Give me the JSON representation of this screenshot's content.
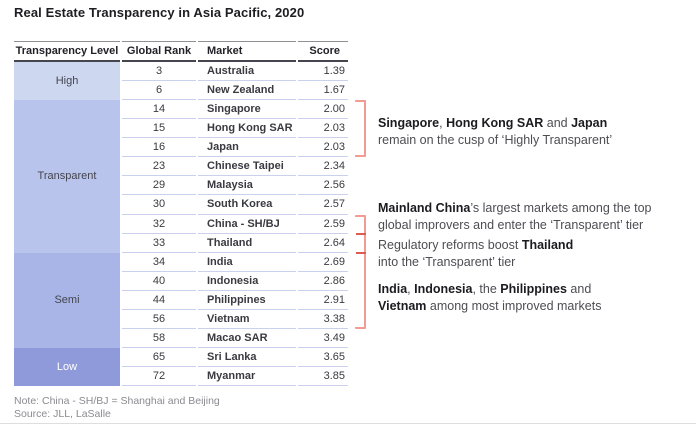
{
  "title": "Real Estate Transparency in Asia Pacific, 2020",
  "notes": {
    "note": "Note: China - SH/BJ = Shanghai and Beijing",
    "source": "Source: JLL, LaSalle"
  },
  "colors": {
    "band_high": "#cdd7f0",
    "band_transparent": "#b8c4eb",
    "band_semi": "#a9b5e6",
    "band_low": "#8e9ad9",
    "gridline": "#c9d1ed",
    "bracket": "#f29b95",
    "bracket_tick": "#df5a52"
  },
  "chart_data": {
    "type": "table",
    "title": "Real Estate Transparency in Asia Pacific, 2020",
    "columns": [
      "Transparency Level",
      "Global Rank",
      "Market",
      "Score"
    ],
    "levels": [
      {
        "label": "High",
        "rows": 2,
        "color": "#cdd7f0",
        "text_color": "#44454f"
      },
      {
        "label": "Transparent",
        "rows": 8,
        "color": "#b8c4eb",
        "text_color": "#44454f"
      },
      {
        "label": "Semi",
        "rows": 5,
        "color": "#a9b5e6",
        "text_color": "#44454f"
      },
      {
        "label": "Low",
        "rows": 2,
        "color": "#8e9ad9",
        "text_color": "#ffffff"
      }
    ],
    "rows": [
      {
        "level": "High",
        "rank": "3",
        "market": "Australia",
        "score": "1.39"
      },
      {
        "level": "High",
        "rank": "6",
        "market": "New Zealand",
        "score": "1.67"
      },
      {
        "level": "Transparent",
        "rank": "14",
        "market": "Singapore",
        "score": "2.00"
      },
      {
        "level": "Transparent",
        "rank": "15",
        "market": "Hong Kong SAR",
        "score": "2.03"
      },
      {
        "level": "Transparent",
        "rank": "16",
        "market": "Japan",
        "score": "2.03"
      },
      {
        "level": "Transparent",
        "rank": "23",
        "market": "Chinese Taipei",
        "score": "2.34"
      },
      {
        "level": "Transparent",
        "rank": "29",
        "market": "Malaysia",
        "score": "2.56"
      },
      {
        "level": "Transparent",
        "rank": "30",
        "market": "South Korea",
        "score": "2.57"
      },
      {
        "level": "Transparent",
        "rank": "32",
        "market": "China - SH/BJ",
        "score": "2.59"
      },
      {
        "level": "Transparent",
        "rank": "33",
        "market": "Thailand",
        "score": "2.64"
      },
      {
        "level": "Semi",
        "rank": "34",
        "market": "India",
        "score": "2.69"
      },
      {
        "level": "Semi",
        "rank": "40",
        "market": "Indonesia",
        "score": "2.86"
      },
      {
        "level": "Semi",
        "rank": "44",
        "market": "Philippines",
        "score": "2.91"
      },
      {
        "level": "Semi",
        "rank": "56",
        "market": "Vietnam",
        "score": "3.38"
      },
      {
        "level": "Semi",
        "rank": "58",
        "market": "Macao SAR",
        "score": "3.49"
      },
      {
        "level": "Low",
        "rank": "65",
        "market": "Sri Lanka",
        "score": "3.65"
      },
      {
        "level": "Low",
        "rank": "72",
        "market": "Myanmar",
        "score": "3.85"
      }
    ]
  },
  "annotations": [
    {
      "lines": [
        [
          {
            "t": "Singapore",
            "b": 1
          },
          {
            "t": ", ",
            "b": 0
          },
          {
            "t": "Hong Kong SAR",
            "b": 1
          },
          {
            "t": " and ",
            "b": 0
          },
          {
            "t": "Japan",
            "b": 1
          }
        ],
        [
          {
            "t": "remain on the cusp of ‘Highly Transparent’",
            "b": 0
          }
        ]
      ]
    },
    {
      "lines": [
        [
          {
            "t": "Mainland China",
            "b": 1
          },
          {
            "t": "’s largest markets among the top",
            "b": 0
          }
        ],
        [
          {
            "t": "global improvers and enter the ‘Transparent’ tier",
            "b": 0
          }
        ]
      ]
    },
    {
      "lines": [
        [
          {
            "t": "Regulatory reforms boost ",
            "b": 0
          },
          {
            "t": "Thailand",
            "b": 1
          }
        ],
        [
          {
            "t": "into the ‘Transparent’ tier",
            "b": 0
          }
        ]
      ]
    },
    {
      "lines": [
        [
          {
            "t": "India",
            "b": 1
          },
          {
            "t": ", ",
            "b": 0
          },
          {
            "t": "Indonesia",
            "b": 1
          },
          {
            "t": ", the ",
            "b": 0
          },
          {
            "t": "Philippines",
            "b": 1
          },
          {
            "t": " and",
            "b": 0
          }
        ],
        [
          {
            "t": "Vietnam",
            "b": 1
          },
          {
            "t": " among most improved markets",
            "b": 0
          }
        ]
      ]
    }
  ]
}
